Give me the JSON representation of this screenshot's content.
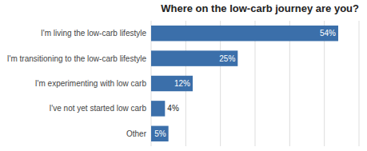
{
  "chart_data": {
    "type": "bar",
    "orientation": "horizontal",
    "title": "Where on the low-carb journey are you?",
    "categories": [
      "Other",
      "I've not yet started low carb",
      "I'm experimenting with low carb",
      "I'm transitioning to the low-carb lifestyle",
      "I'm living the low-carb lifestyle"
    ],
    "values": [
      5,
      4,
      12,
      25,
      54
    ],
    "value_labels": [
      "5%",
      "4%",
      "12%",
      "25%",
      "54%"
    ],
    "data_labels": true,
    "color": "#3b6faa",
    "xlim": [
      0,
      60
    ],
    "xticks": [
      0,
      10,
      20,
      30,
      40,
      50,
      60
    ],
    "grid": true,
    "tick_labels": "y"
  }
}
